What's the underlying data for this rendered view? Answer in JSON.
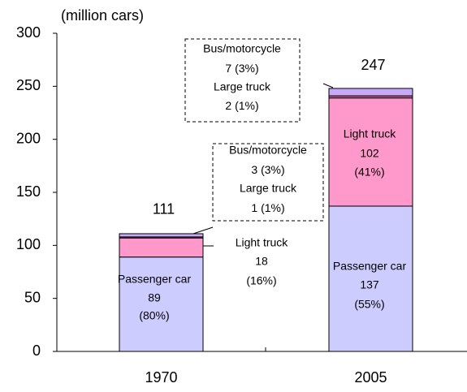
{
  "chart_data": {
    "type": "stacked_bar",
    "y_axis_label": "(million cars)",
    "categories": [
      "1970",
      "2005"
    ],
    "totals": [
      111,
      247
    ],
    "series": [
      {
        "name": "Passenger car",
        "color": "#ccccff",
        "values": [
          89,
          137
        ],
        "shares": [
          "(80%)",
          "(55%)"
        ]
      },
      {
        "name": "Light truck",
        "color": "#ff99cc",
        "values": [
          18,
          102
        ],
        "shares": [
          "(16%)",
          "(41%)"
        ]
      },
      {
        "name": "Large truck",
        "color": "#cc6699",
        "values": [
          1,
          2
        ],
        "shares": [
          "(1%)",
          "(1%)"
        ]
      },
      {
        "name": "Bus/motorcycle",
        "color": "#c8aaf8",
        "values": [
          3,
          7
        ],
        "shares": [
          "(3%)",
          "(3%)"
        ]
      }
    ],
    "ylim": [
      0,
      300
    ],
    "yticks": [
      0,
      50,
      100,
      150,
      200,
      250,
      300
    ]
  }
}
